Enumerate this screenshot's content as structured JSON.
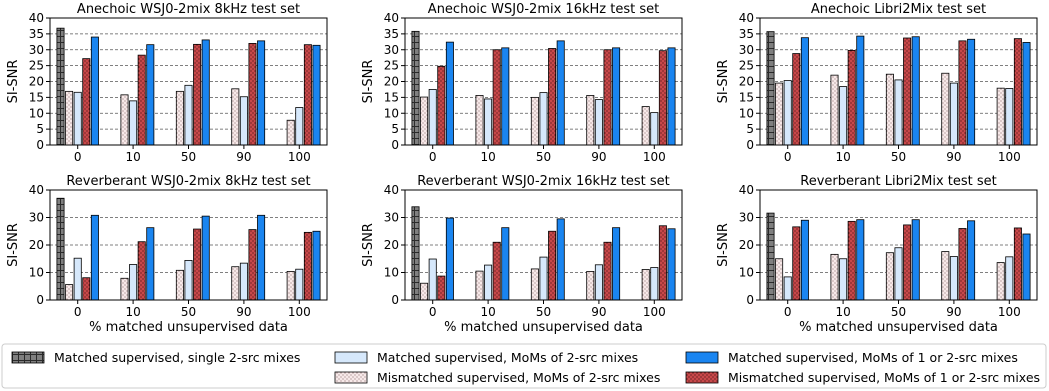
{
  "x_categories": [
    "0",
    "10",
    "50",
    "90",
    "100"
  ],
  "series_styles": [
    {
      "label": "Matched supervised, single 2-src mixes",
      "fill": "#7f7f7f",
      "pattern": "grid"
    },
    {
      "label": "Mismatched supervised, MoMs of 2-src mixes",
      "fill": "#f7e9e9",
      "pattern": "dots"
    },
    {
      "label": "Matched supervised, MoMs of 2-src mixes",
      "fill": "#d6e8fb",
      "pattern": "none"
    },
    {
      "label": "Mismatched supervised, MoMs of 1 or 2-src mixes",
      "fill": "#c8484a",
      "pattern": "dots"
    },
    {
      "label": "Matched supervised, MoMs of 1 or 2-src mixes",
      "fill": "#1a85f0",
      "pattern": "none"
    }
  ],
  "chart_data": [
    {
      "type": "bar",
      "title": "Anechoic WSJ0-2mix 8kHz test set",
      "xlabel": "",
      "ylabel": "SI-SNR",
      "ylim": [
        0,
        40
      ],
      "yticks": [
        0,
        5,
        10,
        15,
        20,
        25,
        30,
        35,
        40
      ],
      "categories": [
        "0",
        "10",
        "50",
        "90",
        "100"
      ],
      "series": [
        {
          "name": "Matched supervised, single 2-src mixes",
          "values": [
            36.8,
            null,
            null,
            null,
            null
          ]
        },
        {
          "name": "Mismatched supervised, MoMs of 2-src mixes",
          "values": [
            16.9,
            15.8,
            16.9,
            17.7,
            7.8
          ]
        },
        {
          "name": "Matched supervised, MoMs of 2-src mixes",
          "values": [
            16.6,
            13.9,
            18.8,
            15.2,
            11.8
          ]
        },
        {
          "name": "Mismatched supervised, MoMs of 1 or 2-src mixes",
          "values": [
            27.2,
            28.3,
            31.7,
            32.0,
            31.6
          ]
        },
        {
          "name": "Matched supervised, MoMs of 1 or 2-src mixes",
          "values": [
            34.0,
            31.6,
            33.1,
            32.8,
            31.4
          ]
        }
      ]
    },
    {
      "type": "bar",
      "title": "Anechoic WSJ0-2mix 16kHz test set",
      "xlabel": "",
      "ylabel": "SI-SNR",
      "ylim": [
        0,
        40
      ],
      "yticks": [
        0,
        5,
        10,
        15,
        20,
        25,
        30,
        35,
        40
      ],
      "categories": [
        "0",
        "10",
        "50",
        "90",
        "100"
      ],
      "series": [
        {
          "name": "Matched supervised, single 2-src mixes",
          "values": [
            35.8,
            null,
            null,
            null,
            null
          ]
        },
        {
          "name": "Mismatched supervised, MoMs of 2-src mixes",
          "values": [
            15.1,
            15.6,
            15.0,
            15.6,
            12.1
          ]
        },
        {
          "name": "Matched supervised, MoMs of 2-src mixes",
          "values": [
            17.5,
            14.5,
            16.5,
            14.3,
            10.2
          ]
        },
        {
          "name": "Mismatched supervised, MoMs of 1 or 2-src mixes",
          "values": [
            24.8,
            30.0,
            30.4,
            30.0,
            29.7
          ]
        },
        {
          "name": "Matched supervised, MoMs of 1 or 2-src mixes",
          "values": [
            32.4,
            30.6,
            32.8,
            30.6,
            30.6
          ]
        }
      ]
    },
    {
      "type": "bar",
      "title": "Anechoic Libri2Mix test set",
      "xlabel": "",
      "ylabel": "SI-SNR",
      "ylim": [
        0,
        40
      ],
      "yticks": [
        0,
        5,
        10,
        15,
        20,
        25,
        30,
        35,
        40
      ],
      "categories": [
        "0",
        "10",
        "50",
        "90",
        "100"
      ],
      "series": [
        {
          "name": "Matched supervised, single 2-src mixes",
          "values": [
            35.7,
            null,
            null,
            null,
            null
          ]
        },
        {
          "name": "Mismatched supervised, MoMs of 2-src mixes",
          "values": [
            19.5,
            22.0,
            22.3,
            22.6,
            17.9
          ]
        },
        {
          "name": "Matched supervised, MoMs of 2-src mixes",
          "values": [
            20.3,
            18.4,
            20.5,
            19.5,
            17.8
          ]
        },
        {
          "name": "Mismatched supervised, MoMs of 1 or 2-src mixes",
          "values": [
            28.8,
            29.8,
            33.7,
            32.8,
            33.5
          ]
        },
        {
          "name": "Matched supervised, MoMs of 1 or 2-src mixes",
          "values": [
            33.8,
            34.3,
            34.1,
            33.3,
            32.3
          ]
        }
      ]
    },
    {
      "type": "bar",
      "title": "Reverberant WSJ0-2mix 8kHz test set",
      "xlabel": "% matched unsupervised data",
      "ylabel": "SI-SNR",
      "ylim": [
        0,
        40
      ],
      "yticks": [
        0,
        10,
        20,
        30,
        40
      ],
      "categories": [
        "0",
        "10",
        "50",
        "90",
        "100"
      ],
      "series": [
        {
          "name": "Matched supervised, single 2-src mixes",
          "values": [
            37.0,
            null,
            null,
            null,
            null
          ]
        },
        {
          "name": "Mismatched supervised, MoMs of 2-src mixes",
          "values": [
            5.6,
            7.9,
            10.8,
            12.1,
            10.4
          ]
        },
        {
          "name": "Matched supervised, MoMs of 2-src mixes",
          "values": [
            15.2,
            12.9,
            14.4,
            13.4,
            11.2
          ]
        },
        {
          "name": "Mismatched supervised, MoMs of 1 or 2-src mixes",
          "values": [
            8.1,
            21.2,
            25.8,
            25.6,
            24.6
          ]
        },
        {
          "name": "Matched supervised, MoMs of 1 or 2-src mixes",
          "values": [
            30.8,
            26.3,
            30.5,
            30.8,
            25.0
          ]
        }
      ]
    },
    {
      "type": "bar",
      "title": "Reverberant WSJ0-2mix 16kHz test set",
      "xlabel": "% matched unsupervised data",
      "ylabel": "SI-SNR",
      "ylim": [
        0,
        40
      ],
      "yticks": [
        0,
        10,
        20,
        30,
        40
      ],
      "categories": [
        "0",
        "10",
        "50",
        "90",
        "100"
      ],
      "series": [
        {
          "name": "Matched supervised, single 2-src mixes",
          "values": [
            33.9,
            null,
            null,
            null,
            null
          ]
        },
        {
          "name": "Mismatched supervised, MoMs of 2-src mixes",
          "values": [
            6.1,
            10.5,
            11.3,
            10.4,
            11.1
          ]
        },
        {
          "name": "Matched supervised, MoMs of 2-src mixes",
          "values": [
            14.9,
            12.7,
            15.6,
            12.8,
            11.8
          ]
        },
        {
          "name": "Mismatched supervised, MoMs of 1 or 2-src mixes",
          "values": [
            8.7,
            21.0,
            25.0,
            21.0,
            27.0
          ]
        },
        {
          "name": "Matched supervised, MoMs of 1 or 2-src mixes",
          "values": [
            29.8,
            26.3,
            29.5,
            26.3,
            25.9
          ]
        }
      ]
    },
    {
      "type": "bar",
      "title": "Reverberant Libri2Mix test set",
      "xlabel": "% matched unsupervised data",
      "ylabel": "SI-SNR",
      "ylim": [
        0,
        40
      ],
      "yticks": [
        0,
        10,
        20,
        30,
        40
      ],
      "categories": [
        "0",
        "10",
        "50",
        "90",
        "100"
      ],
      "series": [
        {
          "name": "Matched supervised, single 2-src mixes",
          "values": [
            31.6,
            null,
            null,
            null,
            null
          ]
        },
        {
          "name": "Mismatched supervised, MoMs of 2-src mixes",
          "values": [
            15.0,
            16.6,
            17.2,
            17.6,
            13.6
          ]
        },
        {
          "name": "Matched supervised, MoMs of 2-src mixes",
          "values": [
            8.4,
            15.0,
            19.0,
            15.8,
            15.7
          ]
        },
        {
          "name": "Mismatched supervised, MoMs of 1 or 2-src mixes",
          "values": [
            26.6,
            28.6,
            27.3,
            26.0,
            26.2
          ]
        },
        {
          "name": "Matched supervised, MoMs of 1 or 2-src mixes",
          "values": [
            29.0,
            29.2,
            29.2,
            28.8,
            24.0
          ]
        }
      ]
    }
  ]
}
